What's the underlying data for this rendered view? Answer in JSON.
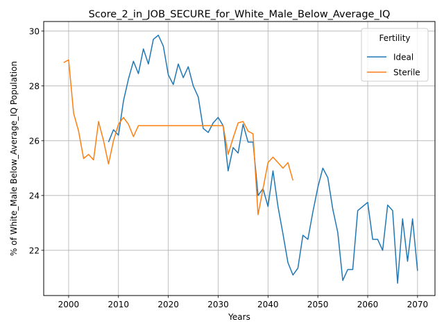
{
  "chart_data": {
    "type": "line",
    "title": "Score_2_in_JOB_SECURE_for_White_Male_Below_Average_IQ",
    "xlabel": "Years",
    "ylabel": "% of White_Male Below_Average_IQ Population",
    "xlim": [
      1995,
      2073.5
    ],
    "ylim": [
      20.35,
      30.35
    ],
    "xticks": [
      2000,
      2010,
      2020,
      2030,
      2040,
      2050,
      2060,
      2070
    ],
    "yticks": [
      22,
      24,
      26,
      28,
      30
    ],
    "grid": true,
    "legend": {
      "title": "Fertility",
      "placement": "top-right"
    },
    "series": [
      {
        "name": "Ideal",
        "color": "#1f77b4",
        "x": [
          2008,
          2009,
          2010,
          2011,
          2012,
          2013,
          2014,
          2015,
          2016,
          2017,
          2018,
          2019,
          2020,
          2021,
          2022,
          2023,
          2024,
          2025,
          2026,
          2027,
          2028,
          2029,
          2030,
          2031,
          2032,
          2033,
          2034,
          2035,
          2036,
          2037,
          2038,
          2039,
          2040,
          2041,
          2042,
          2043,
          2044,
          2045,
          2046,
          2047,
          2048,
          2049,
          2050,
          2051,
          2052,
          2053,
          2054,
          2055,
          2056,
          2057,
          2058,
          2059,
          2060,
          2061,
          2062,
          2063,
          2064,
          2065,
          2066,
          2067,
          2068,
          2069,
          2070
        ],
        "values": [
          25.95,
          26.4,
          26.2,
          27.45,
          28.25,
          28.9,
          28.45,
          29.35,
          28.8,
          29.7,
          29.85,
          29.45,
          28.4,
          28.05,
          28.8,
          28.3,
          28.7,
          28.0,
          27.6,
          26.45,
          26.3,
          26.65,
          26.85,
          26.55,
          24.9,
          25.75,
          25.55,
          26.6,
          25.95,
          25.95,
          24.0,
          24.25,
          23.6,
          24.9,
          23.6,
          22.6,
          21.55,
          21.1,
          21.35,
          22.55,
          22.4,
          23.4,
          24.3,
          25.0,
          24.65,
          23.5,
          22.65,
          20.9,
          21.3,
          21.3,
          23.45,
          23.6,
          23.75,
          22.4,
          22.4,
          22.0,
          23.65,
          23.45,
          20.8,
          23.15,
          21.6,
          23.15,
          21.25
        ]
      },
      {
        "name": "Sterile",
        "color": "#ff7f0e",
        "x": [
          1999,
          2000,
          2001,
          2002,
          2003,
          2004,
          2005,
          2006,
          2007,
          2008,
          2009,
          2010,
          2011,
          2012,
          2013,
          2014,
          2015,
          2016,
          2017,
          2018,
          2019,
          2020,
          2021,
          2022,
          2023,
          2024,
          2025,
          2026,
          2027,
          2028,
          2029,
          2030,
          2031,
          2032,
          2033,
          2034,
          2035,
          2036,
          2037,
          2038,
          2039,
          2040,
          2041,
          2042,
          2043,
          2044,
          2045
        ],
        "values": [
          28.85,
          28.95,
          27.0,
          26.35,
          25.35,
          25.5,
          25.3,
          26.7,
          26.0,
          25.15,
          26.0,
          26.6,
          26.85,
          26.6,
          26.15,
          26.55,
          26.55,
          26.55,
          26.55,
          26.55,
          26.55,
          26.55,
          26.55,
          26.55,
          26.55,
          26.55,
          26.55,
          26.55,
          26.55,
          26.55,
          26.55,
          26.55,
          26.55,
          25.5,
          26.1,
          26.65,
          26.7,
          26.35,
          26.25,
          23.3,
          24.25,
          25.2,
          25.4,
          25.2,
          25.0,
          25.2,
          24.55
        ]
      }
    ]
  }
}
